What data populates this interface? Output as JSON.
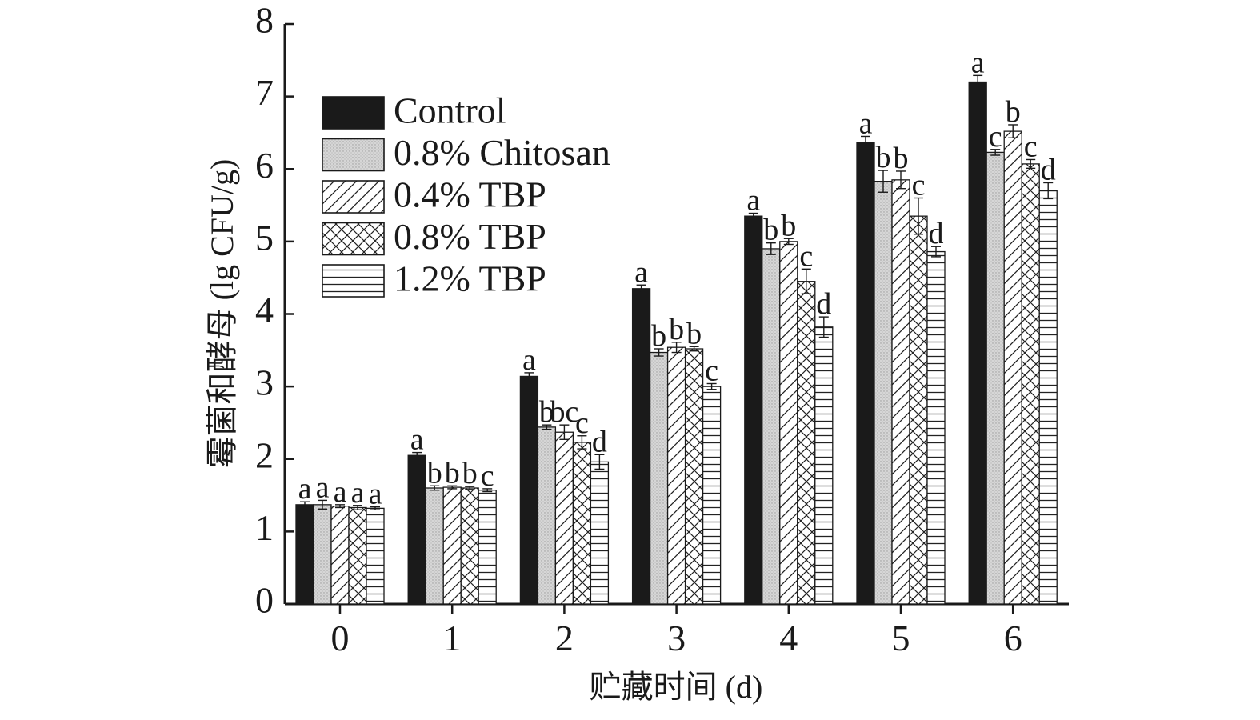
{
  "chart_data": {
    "type": "bar",
    "title": "",
    "xlabel": "贮藏时间 (d)",
    "ylabel": "霉菌和酵母 (lg CFU/g)",
    "ylim": [
      0,
      8
    ],
    "yticks": [
      "0",
      "1",
      "2",
      "3",
      "4",
      "5",
      "6",
      "7",
      "8"
    ],
    "categories": [
      "0",
      "1",
      "2",
      "3",
      "4",
      "5",
      "6"
    ],
    "legend_position": "top-left",
    "series": [
      {
        "name": "Control",
        "pattern": "solid",
        "values": [
          1.37,
          2.05,
          3.14,
          4.35,
          5.35,
          6.37,
          7.2
        ],
        "errors": [
          0.04,
          0.04,
          0.05,
          0.05,
          0.04,
          0.08,
          0.09
        ],
        "labels": [
          "a",
          "a",
          "a",
          "a",
          "a",
          "a",
          "a"
        ]
      },
      {
        "name": "0.8% Chitosan",
        "pattern": "dots",
        "values": [
          1.37,
          1.6,
          2.44,
          3.47,
          4.9,
          5.83,
          6.23
        ],
        "errors": [
          0.06,
          0.03,
          0.03,
          0.05,
          0.08,
          0.15,
          0.04
        ],
        "labels": [
          "a",
          "b",
          "b",
          "b",
          "b",
          "b",
          "c"
        ]
      },
      {
        "name": "0.4% TBP",
        "pattern": "diagonal",
        "values": [
          1.35,
          1.61,
          2.37,
          3.54,
          5.0,
          5.85,
          6.52
        ],
        "errors": [
          0.02,
          0.02,
          0.1,
          0.07,
          0.04,
          0.12,
          0.09
        ],
        "labels": [
          "a",
          "b",
          "bc",
          "b",
          "b",
          "b",
          "b"
        ]
      },
      {
        "name": "0.8% TBP",
        "pattern": "crosshatch",
        "values": [
          1.33,
          1.6,
          2.23,
          3.52,
          4.45,
          5.35,
          6.07
        ],
        "errors": [
          0.03,
          0.02,
          0.09,
          0.03,
          0.17,
          0.25,
          0.06
        ],
        "labels": [
          "a",
          "b",
          "c",
          "b",
          "c",
          "c",
          "c"
        ]
      },
      {
        "name": "1.2% TBP",
        "pattern": "horizontal",
        "values": [
          1.32,
          1.57,
          1.96,
          3.0,
          3.82,
          4.86,
          5.7
        ],
        "errors": [
          0.02,
          0.02,
          0.1,
          0.04,
          0.14,
          0.07,
          0.11
        ],
        "labels": [
          "a",
          "c",
          "d",
          "c",
          "d",
          "d",
          "d"
        ]
      }
    ]
  }
}
